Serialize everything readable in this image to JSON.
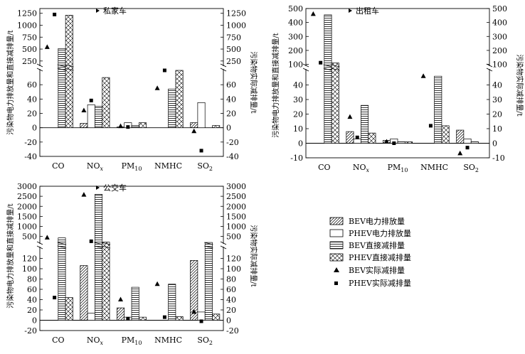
{
  "chart_data": [
    {
      "type": "bar",
      "title": "私家车",
      "categories": [
        "CO",
        "NOx",
        "PM10",
        "NMHC",
        "SO2"
      ],
      "ylabel_left": "污染物电力排放量和直接减排量/t",
      "ylabel_right": "污染物实际减排量/t",
      "y_lower_range": [
        -40,
        80
      ],
      "y_lower_ticks": [
        -40,
        -20,
        0,
        20,
        40,
        60
      ],
      "y_upper_range": [
        150,
        1350
      ],
      "y_upper_ticks": [
        250,
        500,
        750,
        1000,
        1250
      ],
      "series": [
        {
          "name": "BEV电力排放量",
          "values": [
            0,
            6,
            1,
            0,
            7
          ]
        },
        {
          "name": "PHEV电力排放量",
          "values": [
            0,
            32,
            7,
            0,
            35
          ]
        },
        {
          "name": "BEV直接减排量",
          "values": [
            510,
            30,
            3,
            54,
            0
          ]
        },
        {
          "name": "PHEV直接减排量",
          "values": [
            1210,
            70,
            7,
            108,
            3
          ]
        },
        {
          "name": "BEV实际减排量",
          "values": [
            540,
            24,
            2,
            55,
            -5
          ]
        },
        {
          "name": "PHEV实际减排量",
          "values": [
            1225,
            38,
            1,
            120,
            -32
          ]
        }
      ]
    },
    {
      "type": "bar",
      "title": "出租车",
      "categories": [
        "CO",
        "NOx",
        "PM10",
        "NMHC",
        "SO2"
      ],
      "ylabel_left": "污染物电力排放量和直接减排量/t",
      "ylabel_right": "污染物实际减排量/t",
      "y_lower_range": [
        -10,
        50
      ],
      "y_lower_ticks": [
        -10,
        0,
        10,
        20,
        30,
        40
      ],
      "y_upper_range": [
        90,
        500
      ],
      "y_upper_ticks": [
        100,
        200,
        300,
        400,
        500
      ],
      "series": [
        {
          "name": "BEV电力排放量",
          "values": [
            0,
            8,
            2,
            0,
            9
          ]
        },
        {
          "name": "PHEV电力排放量",
          "values": [
            0,
            3,
            3,
            0,
            3
          ]
        },
        {
          "name": "BEV直接减排量",
          "values": [
            455,
            26,
            1,
            46,
            1
          ]
        },
        {
          "name": "PHEV直接减排量",
          "values": [
            110,
            7,
            1,
            12,
            0
          ]
        },
        {
          "name": "BEV实际减排量",
          "values": [
            460,
            18,
            1,
            46,
            -7
          ]
        },
        {
          "name": "PHEV实际减排量",
          "values": [
            112,
            4,
            0,
            12,
            -3
          ]
        }
      ]
    },
    {
      "type": "bar",
      "title": "公交车",
      "categories": [
        "CO",
        "NOx",
        "PM10",
        "NMHC",
        "SO2"
      ],
      "ylabel_left": "污染物电力排放量和直接减排量/t",
      "ylabel_right": "污染物实际减排量/t",
      "y_lower_range": [
        -20,
        140
      ],
      "y_lower_ticks": [
        -20,
        0,
        20,
        40,
        60,
        80,
        100,
        120
      ],
      "y_upper_range": [
        150,
        3000
      ],
      "y_upper_ticks": [
        500,
        1000,
        1500,
        2000,
        2500,
        3000
      ],
      "series": [
        {
          "name": "BEV电力排放量",
          "values": [
            0,
            106,
            24,
            0,
            116
          ]
        },
        {
          "name": "PHEV电力排放量",
          "values": [
            0,
            14,
            6,
            0,
            16
          ]
        },
        {
          "name": "BEV直接减排量",
          "values": [
            430,
            2600,
            64,
            70,
            200
          ]
        },
        {
          "name": "PHEV直接减排量",
          "values": [
            44,
            220,
            6,
            7,
            12
          ]
        },
        {
          "name": "BEV实际减排量",
          "values": [
            440,
            2570,
            40,
            70,
            16
          ]
        },
        {
          "name": "PHEV实际减排量",
          "values": [
            44,
            260,
            3,
            6,
            -2
          ]
        }
      ]
    }
  ],
  "legend": [
    {
      "label": "BEV电力排放量"
    },
    {
      "label": "PHEV电力排放量"
    },
    {
      "label": "BEV直接减排量"
    },
    {
      "label": "PHEV直接减排量"
    },
    {
      "label": "BEV实际减排量"
    },
    {
      "label": "PHEV实际减排量"
    }
  ]
}
